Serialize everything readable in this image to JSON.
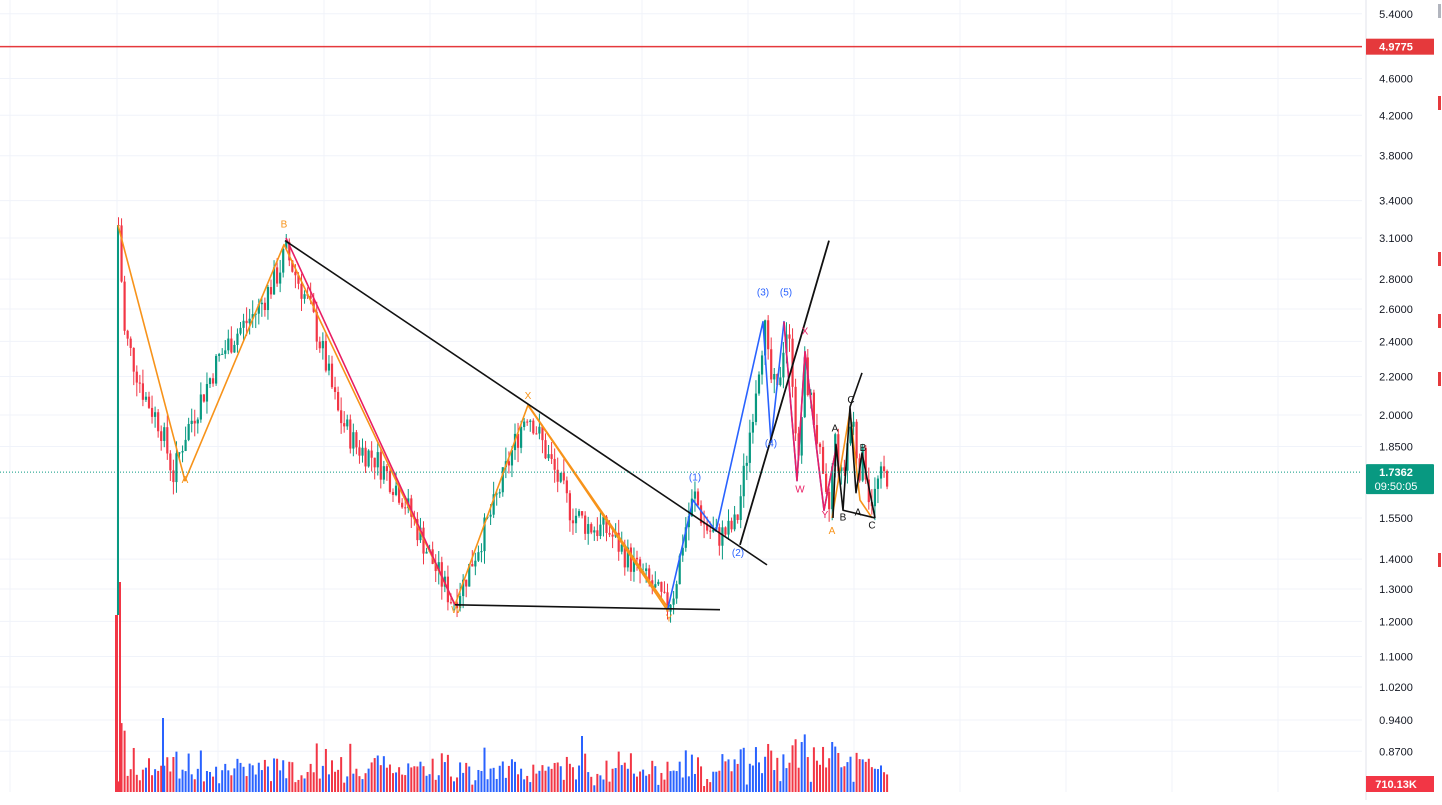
{
  "chart_data": {
    "type": "candlestick",
    "price_scale": "log",
    "y_ticks": [
      "5.4000",
      "4.6000",
      "4.2000",
      "3.8000",
      "3.4000",
      "3.1000",
      "2.8000",
      "2.6000",
      "2.4000",
      "2.2000",
      "2.0000",
      "1.8500",
      "1.5500",
      "1.4000",
      "1.3000",
      "1.2000",
      "1.1000",
      "1.0200",
      "0.9400",
      "0.8700"
    ],
    "alert_line": {
      "price": "4.9775",
      "color": "#e5393c"
    },
    "last_price": {
      "value": "1.7362",
      "countdown": "09:50:05",
      "color": "#089981"
    },
    "volume_label": "710.13K",
    "colors": {
      "up": "#089981",
      "down": "#f23645",
      "vol_up": "#2962ff",
      "vol_down": "#f23645",
      "orange": "#f7931a",
      "pink": "#e91e63",
      "blue": "#2962ff",
      "black": "#111111"
    },
    "wave_labels": [
      {
        "text": "A",
        "price": 1.69,
        "color": "orange"
      },
      {
        "text": "B",
        "price": 3.18,
        "color": "orange"
      },
      {
        "text": "W",
        "price": 1.225,
        "color": "orange"
      },
      {
        "text": "X",
        "price": 2.08,
        "color": "orange"
      },
      {
        "text": "Y",
        "price": 1.2,
        "color": "orange"
      },
      {
        "text": "(1)",
        "price": 1.7,
        "color": "blue"
      },
      {
        "text": "(2)",
        "price": 1.41,
        "color": "blue"
      },
      {
        "text": "(3)",
        "price": 2.69,
        "color": "blue"
      },
      {
        "text": "(4)",
        "price": 1.85,
        "color": "blue"
      },
      {
        "text": "(5)",
        "price": 2.69,
        "color": "blue"
      },
      {
        "text": "X",
        "price": 2.44,
        "color": "pink"
      },
      {
        "text": "W",
        "price": 1.65,
        "color": "pink"
      },
      {
        "text": "Y",
        "price": 1.55,
        "color": "pink"
      },
      {
        "text": "A",
        "price": 1.49,
        "color": "orange"
      },
      {
        "text": "B",
        "price": 1.54,
        "color": "black"
      },
      {
        "text": "A",
        "price": 1.92,
        "color": "black"
      },
      {
        "text": "C",
        "price": 2.06,
        "color": "black"
      },
      {
        "text": "B",
        "price": 1.83,
        "color": "black"
      },
      {
        "text": "A",
        "price": 1.56,
        "color": "black"
      },
      {
        "text": "C",
        "price": 1.51,
        "color": "black"
      }
    ]
  }
}
